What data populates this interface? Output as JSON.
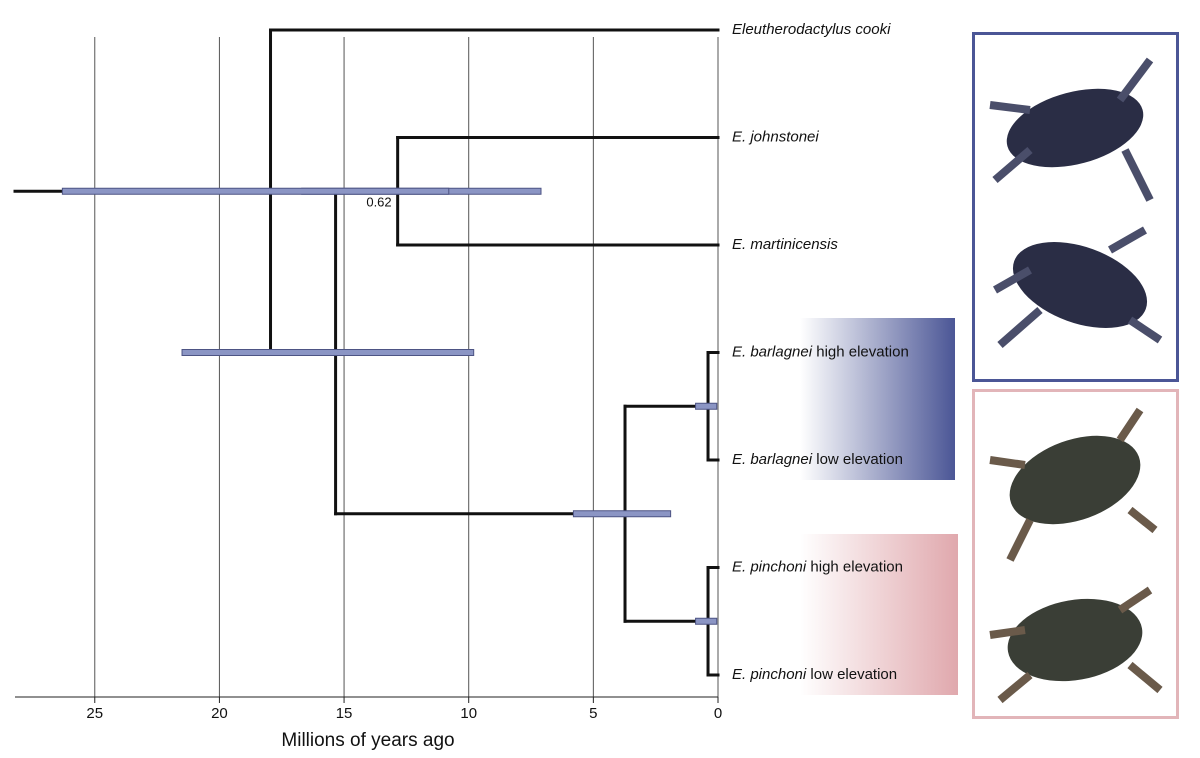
{
  "chart_data": {
    "type": "tree",
    "x_label": "Millions of years ago",
    "xlim": [
      28.2,
      0
    ],
    "xticks": [
      25,
      20,
      15,
      10,
      5,
      0
    ],
    "grid": true,
    "tree": {
      "age": 17.95,
      "interval": [
        26.3,
        10.8
      ],
      "children": [
        {
          "name": "Eleutherodactylus cooki"
        },
        {
          "age": 15.34,
          "interval": [
            21.5,
            9.8
          ],
          "children": [
            {
              "age": 12.85,
              "interval": [
                16.7,
                7.1
              ],
              "support": 0.62,
              "children": [
                {
                  "name": "E. johnstonei"
                },
                {
                  "name": "E. martinicensis"
                }
              ]
            },
            {
              "age": 3.73,
              "interval": [
                5.8,
                1.9
              ],
              "children": [
                {
                  "age": 0.4,
                  "interval": [
                    0.9,
                    0.05
                  ],
                  "children": [
                    {
                      "name": "E. barlagnei",
                      "detail": "high elevation"
                    },
                    {
                      "name": "E. barlagnei",
                      "detail": "low elevation"
                    }
                  ]
                },
                {
                  "age": 0.4,
                  "interval": [
                    0.9,
                    0.05
                  ],
                  "children": [
                    {
                      "name": "E. pinchoni",
                      "detail": "high elevation"
                    },
                    {
                      "name": "E. pinchoni",
                      "detail": "low elevation"
                    }
                  ]
                }
              ]
            }
          ]
        }
      ]
    }
  }
}
